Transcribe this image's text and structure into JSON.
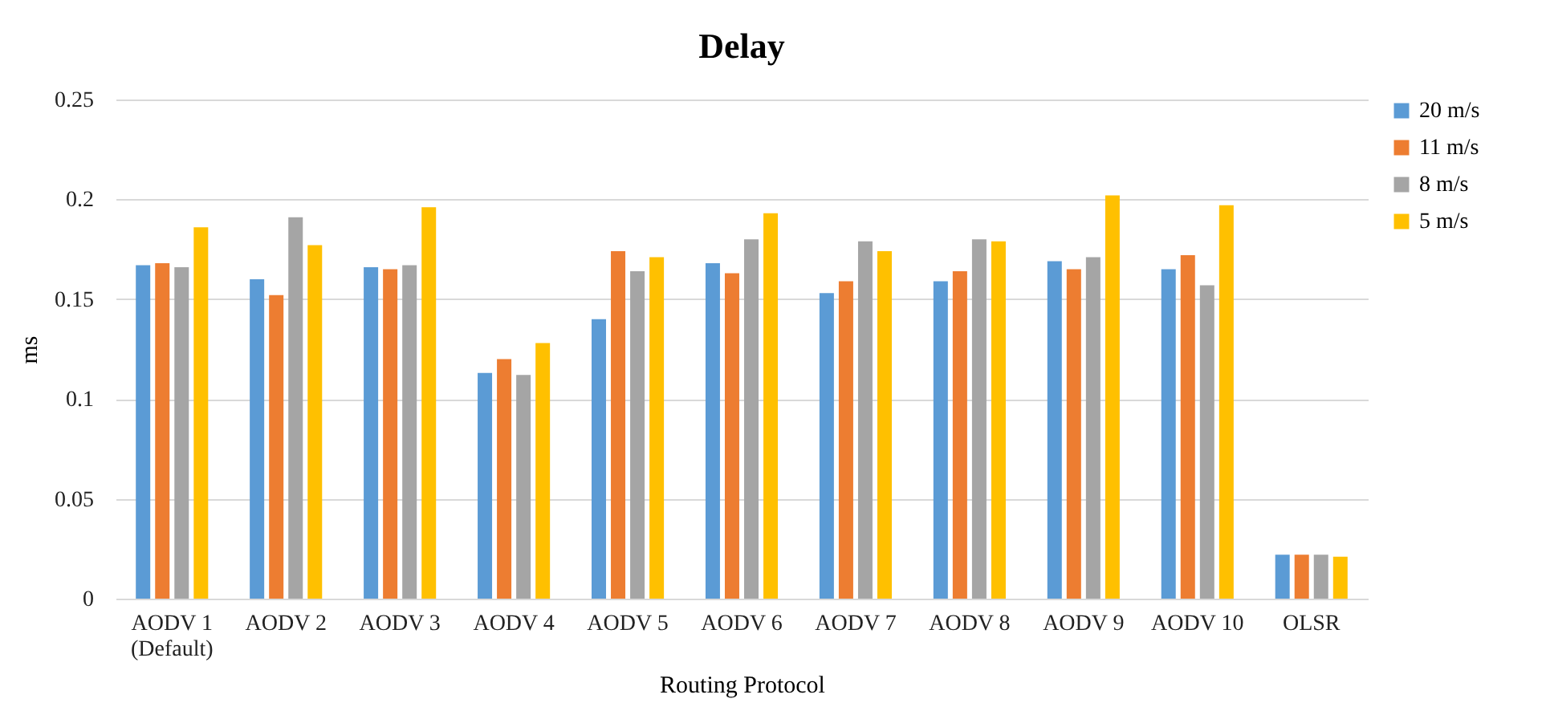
{
  "chart_data": {
    "type": "bar",
    "title": "Delay",
    "xlabel": "Routing Protocol",
    "ylabel": "ms",
    "categories": [
      "AODV 1\n(Default)",
      "AODV 2",
      "AODV 3",
      "AODV 4",
      "AODV 5",
      "AODV 6",
      "AODV 7",
      "AODV 8",
      "AODV 9",
      "AODV 10",
      "OLSR"
    ],
    "series": [
      {
        "name": "20 m/s",
        "color": "#5b9bd5",
        "values": [
          0.167,
          0.16,
          0.166,
          0.113,
          0.14,
          0.168,
          0.153,
          0.159,
          0.169,
          0.165,
          0.022
        ]
      },
      {
        "name": "11 m/s",
        "color": "#ed7d31",
        "values": [
          0.168,
          0.152,
          0.165,
          0.12,
          0.174,
          0.163,
          0.159,
          0.164,
          0.165,
          0.172,
          0.022
        ]
      },
      {
        "name": "8 m/s",
        "color": "#a5a5a5",
        "values": [
          0.166,
          0.191,
          0.167,
          0.112,
          0.164,
          0.18,
          0.179,
          0.18,
          0.171,
          0.157,
          0.022
        ]
      },
      {
        "name": "5 m/s",
        "color": "#ffc000",
        "values": [
          0.186,
          0.177,
          0.196,
          0.128,
          0.171,
          0.193,
          0.174,
          0.179,
          0.202,
          0.197,
          0.021
        ]
      }
    ],
    "ylim": [
      0,
      0.25
    ],
    "yticks": [
      0,
      0.05,
      0.1,
      0.15,
      0.2,
      0.25
    ],
    "grid": "y",
    "legend": "right"
  }
}
